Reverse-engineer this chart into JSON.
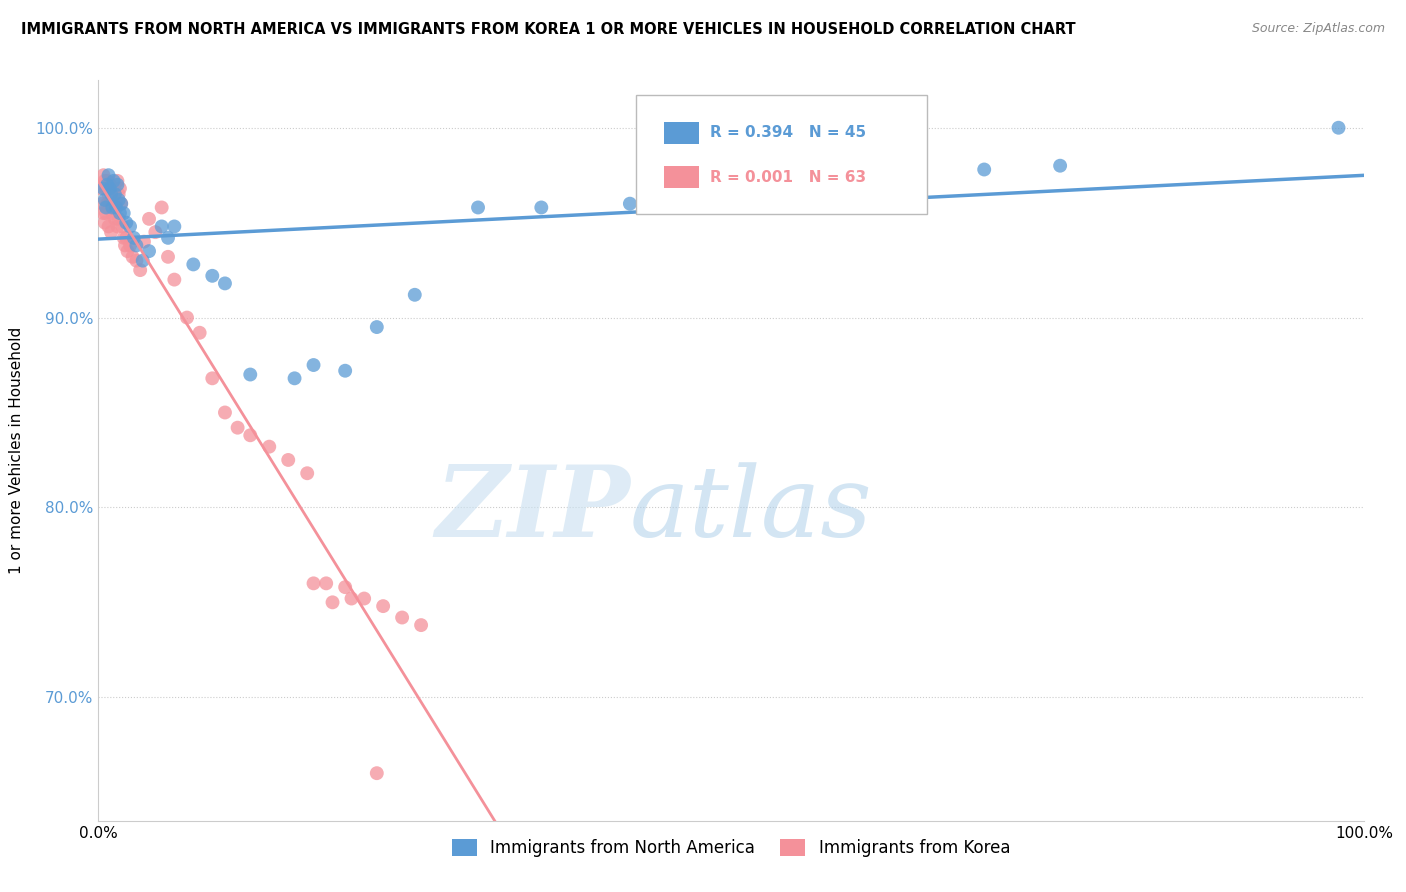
{
  "title": "IMMIGRANTS FROM NORTH AMERICA VS IMMIGRANTS FROM KOREA 1 OR MORE VEHICLES IN HOUSEHOLD CORRELATION CHART",
  "source": "Source: ZipAtlas.com",
  "ylabel": "1 or more Vehicles in Household",
  "xlim": [
    0.0,
    1.0
  ],
  "ylim": [
    0.635,
    1.025
  ],
  "yticks": [
    0.7,
    0.8,
    0.9,
    1.0
  ],
  "ytick_labels": [
    "70.0%",
    "80.0%",
    "90.0%",
    "100.0%"
  ],
  "xticks": [
    0.0,
    0.5,
    1.0
  ],
  "xtick_labels": [
    "0.0%",
    "",
    "100.0%"
  ],
  "legend_label_1": "Immigrants from North America",
  "legend_label_2": "Immigrants from Korea",
  "R1": 0.394,
  "N1": 45,
  "R2": 0.001,
  "N2": 63,
  "color1": "#5B9BD5",
  "color2": "#F4919A",
  "background_color": "#FFFFFF",
  "watermark_zip": "ZIP",
  "watermark_atlas": "atlas",
  "north_america_x": [
    0.004,
    0.005,
    0.006,
    0.007,
    0.008,
    0.009,
    0.01,
    0.011,
    0.012,
    0.013,
    0.014,
    0.015,
    0.016,
    0.017,
    0.018,
    0.02,
    0.022,
    0.025,
    0.028,
    0.03,
    0.035,
    0.04,
    0.05,
    0.055,
    0.06,
    0.075,
    0.09,
    0.1,
    0.12,
    0.155,
    0.17,
    0.195,
    0.22,
    0.25,
    0.3,
    0.35,
    0.42,
    0.45,
    0.5,
    0.52,
    0.6,
    0.64,
    0.7,
    0.76,
    0.98
  ],
  "north_america_y": [
    0.968,
    0.962,
    0.958,
    0.97,
    0.975,
    0.968,
    0.965,
    0.958,
    0.972,
    0.965,
    0.958,
    0.97,
    0.962,
    0.955,
    0.96,
    0.955,
    0.95,
    0.948,
    0.942,
    0.938,
    0.93,
    0.935,
    0.948,
    0.942,
    0.948,
    0.928,
    0.922,
    0.918,
    0.87,
    0.868,
    0.875,
    0.872,
    0.895,
    0.912,
    0.958,
    0.958,
    0.96,
    0.962,
    0.965,
    0.968,
    0.972,
    0.97,
    0.978,
    0.98,
    1.0
  ],
  "korea_x": [
    0.002,
    0.003,
    0.004,
    0.004,
    0.005,
    0.005,
    0.006,
    0.006,
    0.007,
    0.007,
    0.008,
    0.008,
    0.009,
    0.009,
    0.01,
    0.01,
    0.011,
    0.011,
    0.012,
    0.012,
    0.013,
    0.013,
    0.014,
    0.015,
    0.015,
    0.016,
    0.016,
    0.017,
    0.018,
    0.019,
    0.02,
    0.021,
    0.022,
    0.023,
    0.025,
    0.027,
    0.03,
    0.033,
    0.036,
    0.04,
    0.045,
    0.05,
    0.055,
    0.06,
    0.07,
    0.08,
    0.09,
    0.1,
    0.11,
    0.12,
    0.135,
    0.15,
    0.165,
    0.18,
    0.195,
    0.21,
    0.225,
    0.24,
    0.255,
    0.17,
    0.185,
    0.2,
    0.22
  ],
  "korea_y": [
    0.968,
    0.96,
    0.975,
    0.955,
    0.972,
    0.95,
    0.968,
    0.955,
    0.972,
    0.96,
    0.965,
    0.948,
    0.97,
    0.96,
    0.968,
    0.945,
    0.962,
    0.955,
    0.968,
    0.958,
    0.965,
    0.952,
    0.96,
    0.972,
    0.948,
    0.965,
    0.952,
    0.968,
    0.96,
    0.948,
    0.942,
    0.938,
    0.942,
    0.935,
    0.938,
    0.932,
    0.93,
    0.925,
    0.94,
    0.952,
    0.945,
    0.958,
    0.932,
    0.92,
    0.9,
    0.892,
    0.868,
    0.85,
    0.842,
    0.838,
    0.832,
    0.825,
    0.818,
    0.76,
    0.758,
    0.752,
    0.748,
    0.742,
    0.738,
    0.76,
    0.75,
    0.752,
    0.66
  ]
}
